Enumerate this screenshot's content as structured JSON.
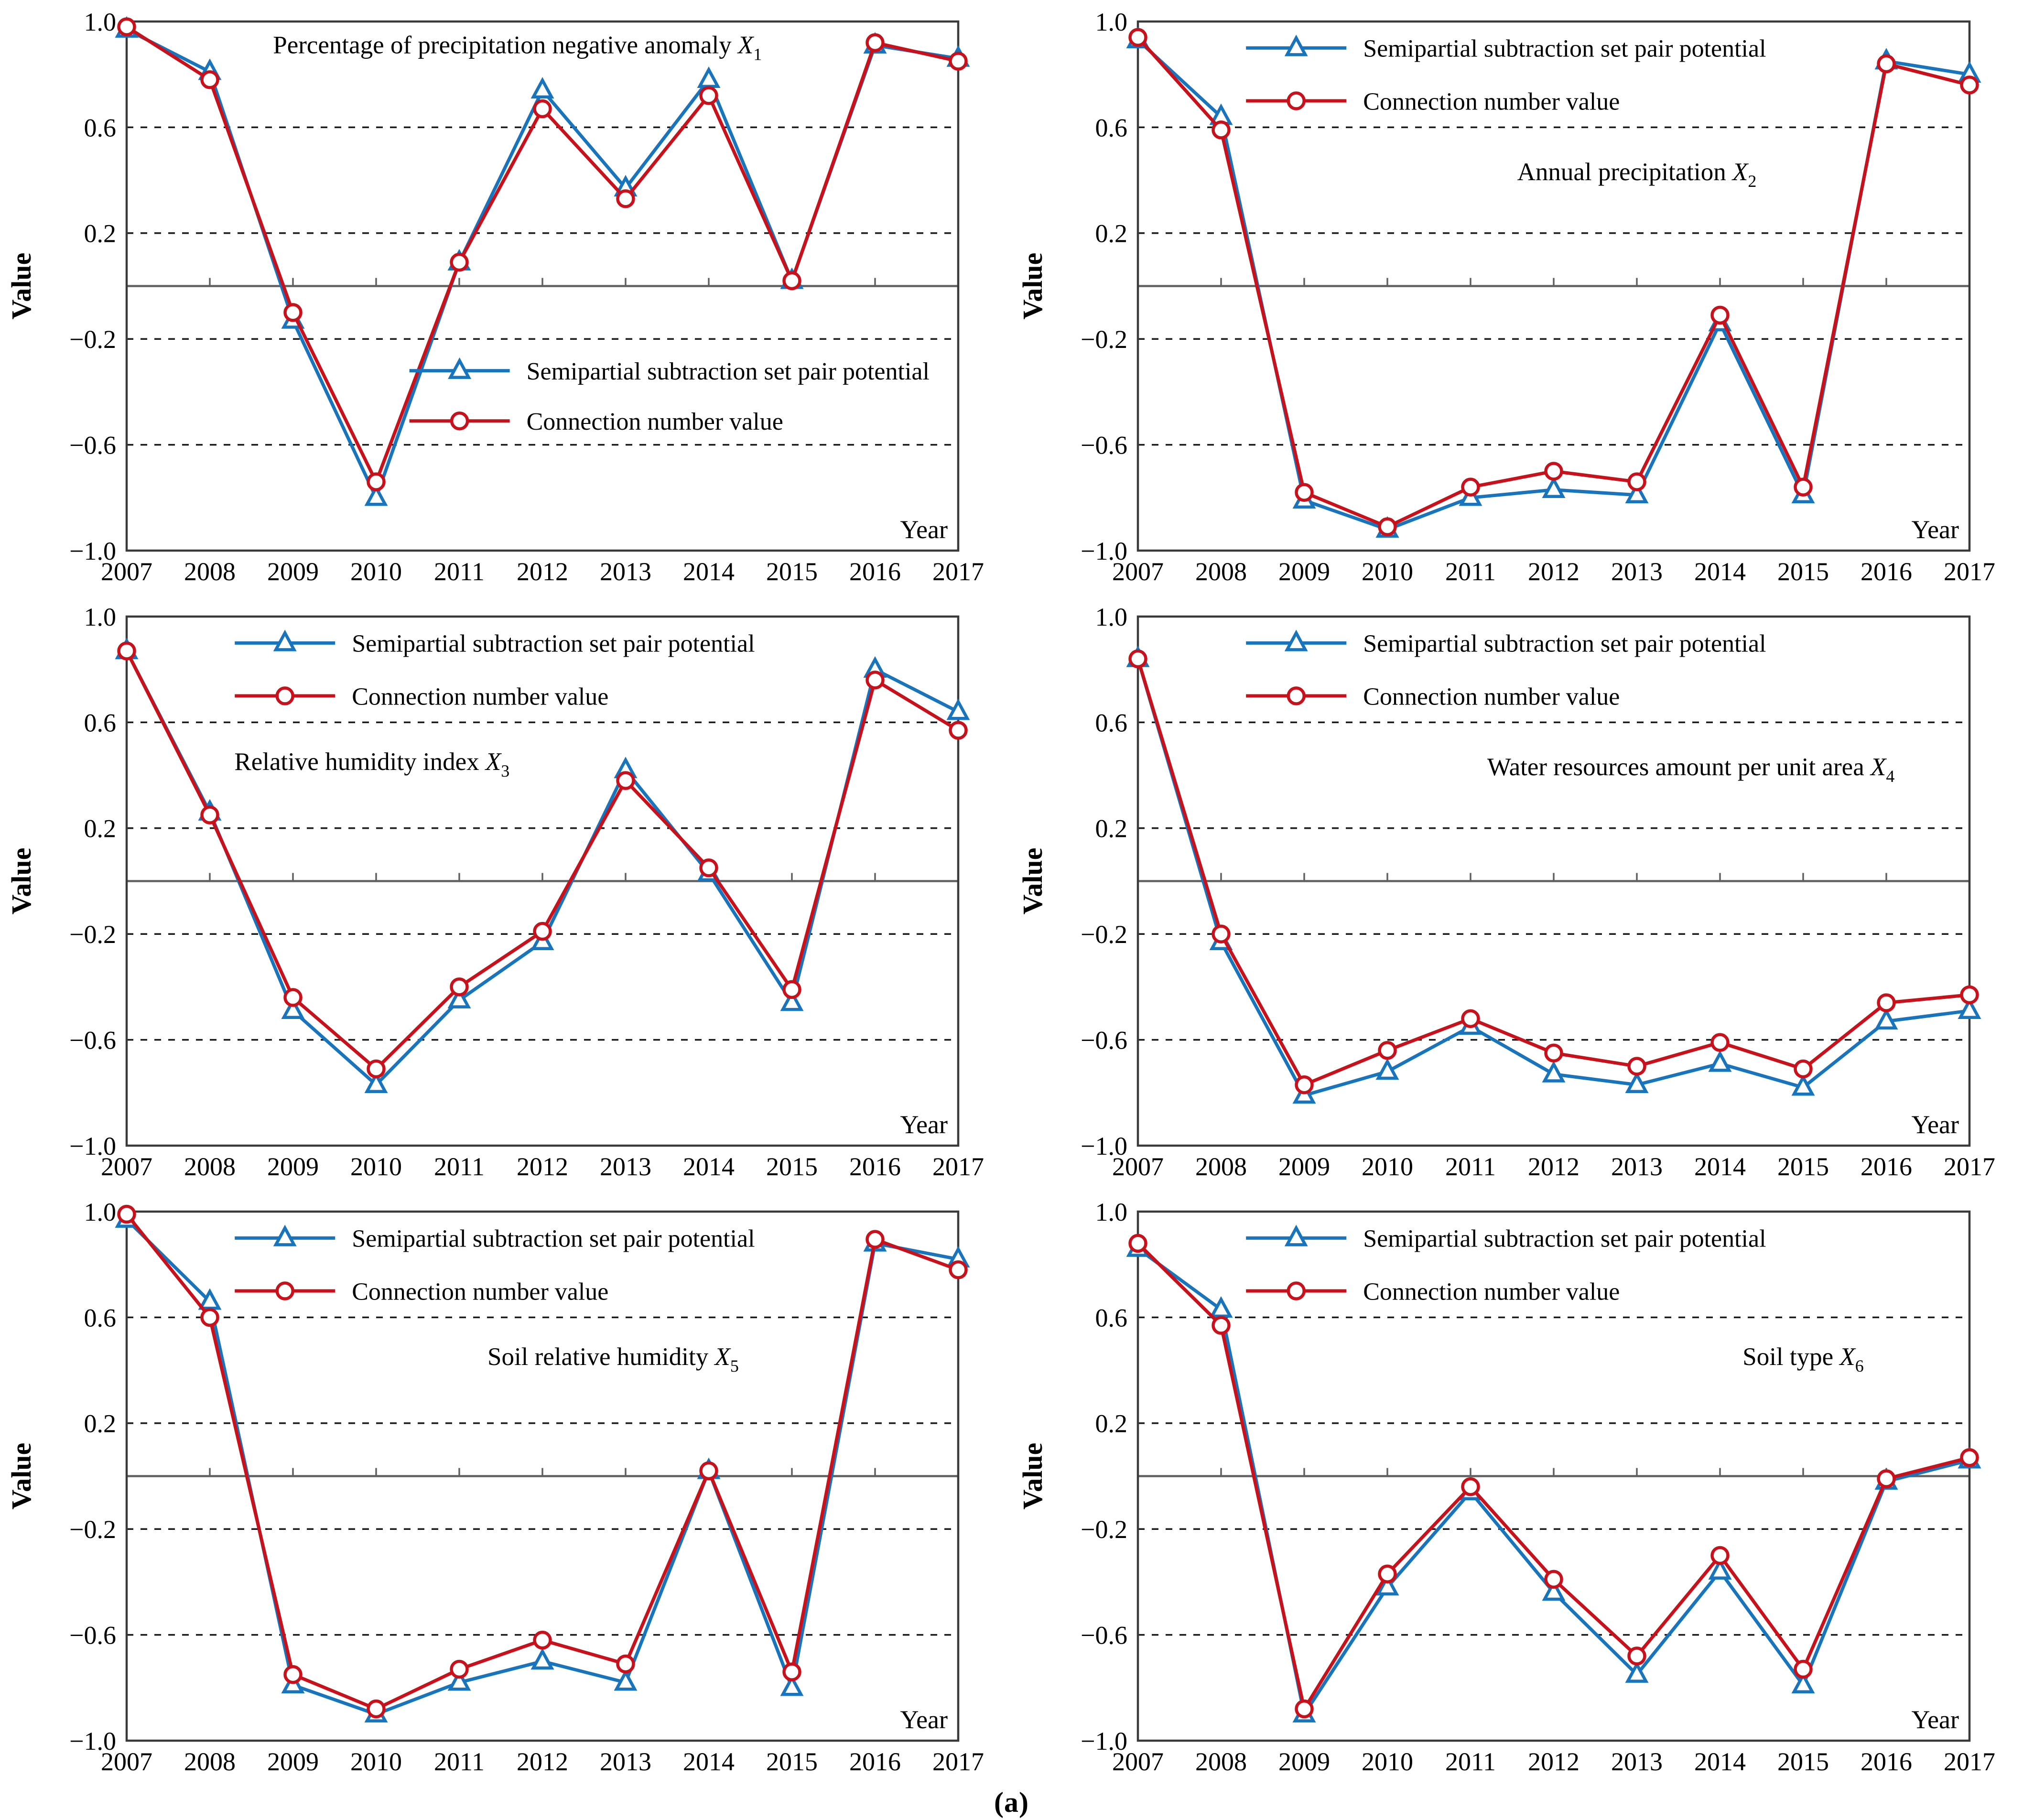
{
  "caption": "(a)",
  "colors": {
    "series_blue": "#1874BC",
    "series_red": "#C8111B",
    "grid": "#1A1A1A",
    "zero_axis": "#616161",
    "frame": "#3A3A3A",
    "text": "#000000",
    "marker_fill": "#FFFFFF",
    "background": "#FFFFFF"
  },
  "legend": {
    "items": [
      {
        "label": "Semipartial subtraction set pair potential",
        "marker": "triangle",
        "color": "series_blue"
      },
      {
        "label": "Connection number value",
        "marker": "circle",
        "color": "series_red"
      }
    ]
  },
  "axis": {
    "ylabel": "Value",
    "xlabel": "Year",
    "ylim": [
      -1.0,
      1.0
    ],
    "ytick_labels": [
      "1.0",
      "0.6",
      "0.2",
      "−0.2",
      "−0.6",
      "−1.0"
    ],
    "ytick_values": [
      1.0,
      0.6,
      0.2,
      -0.2,
      -0.6,
      -1.0
    ],
    "gridline_values": [
      0.6,
      0.2,
      -0.2,
      -0.6
    ],
    "grid_style": "dashed",
    "zero_line": true,
    "years": [
      2007,
      2008,
      2009,
      2010,
      2011,
      2012,
      2013,
      2014,
      2015,
      2016,
      2017
    ]
  },
  "chart_data": [
    {
      "type": "line",
      "title": {
        "text": "Percentage of precipitation negative anomaly ",
        "var": "X",
        "sub": "1"
      },
      "title_pos": {
        "fx": 0.47,
        "value": 0.88
      },
      "legend_pos": {
        "fx": 0.34,
        "row_values": [
          -0.32,
          -0.51
        ]
      },
      "series": [
        {
          "name": "Semipartial subtraction set pair potential",
          "marker": "triangle",
          "color": "series_blue",
          "values": [
            0.97,
            0.81,
            -0.13,
            -0.8,
            0.09,
            0.74,
            0.37,
            0.78,
            0.02,
            0.91,
            0.86
          ]
        },
        {
          "name": "Connection number value",
          "marker": "circle",
          "color": "series_red",
          "values": [
            0.98,
            0.78,
            -0.1,
            -0.74,
            0.09,
            0.67,
            0.33,
            0.72,
            0.02,
            0.92,
            0.85
          ]
        }
      ]
    },
    {
      "type": "line",
      "title": {
        "text": "Annual precipitation ",
        "var": "X",
        "sub": "2"
      },
      "title_pos": {
        "fx": 0.6,
        "value": 0.4
      },
      "legend_pos": {
        "fx": 0.13,
        "row_values": [
          0.9,
          0.7
        ]
      },
      "series": [
        {
          "name": "Semipartial subtraction set pair potential",
          "marker": "triangle",
          "color": "series_blue",
          "values": [
            0.93,
            0.64,
            -0.81,
            -0.92,
            -0.8,
            -0.77,
            -0.79,
            -0.14,
            -0.79,
            0.85,
            0.8
          ]
        },
        {
          "name": "Connection number value",
          "marker": "circle",
          "color": "series_red",
          "values": [
            0.94,
            0.59,
            -0.78,
            -0.91,
            -0.76,
            -0.7,
            -0.74,
            -0.11,
            -0.76,
            0.84,
            0.76
          ]
        }
      ]
    },
    {
      "type": "line",
      "title": {
        "text": "Relative humidity index ",
        "var": "X",
        "sub": "3"
      },
      "title_pos": {
        "fx": 0.295,
        "value": 0.42
      },
      "legend_pos": {
        "fx": 0.13,
        "row_values": [
          0.9,
          0.7
        ]
      },
      "series": [
        {
          "name": "Semipartial subtraction set pair potential",
          "marker": "triangle",
          "color": "series_blue",
          "values": [
            0.87,
            0.26,
            -0.49,
            -0.77,
            -0.45,
            -0.23,
            0.42,
            0.03,
            -0.46,
            0.8,
            0.64
          ]
        },
        {
          "name": "Connection number value",
          "marker": "circle",
          "color": "series_red",
          "values": [
            0.87,
            0.25,
            -0.44,
            -0.71,
            -0.4,
            -0.19,
            0.38,
            0.05,
            -0.41,
            0.76,
            0.57
          ]
        }
      ]
    },
    {
      "type": "line",
      "title": {
        "text": "Water resources amount per unit area ",
        "var": "X",
        "sub": "4"
      },
      "title_pos": {
        "fx": 0.665,
        "value": 0.4
      },
      "legend_pos": {
        "fx": 0.13,
        "row_values": [
          0.9,
          0.7
        ]
      },
      "series": [
        {
          "name": "Semipartial subtraction set pair potential",
          "marker": "triangle",
          "color": "series_blue",
          "values": [
            0.84,
            -0.23,
            -0.81,
            -0.72,
            -0.55,
            -0.73,
            -0.77,
            -0.69,
            -0.78,
            -0.53,
            -0.49
          ]
        },
        {
          "name": "Connection number value",
          "marker": "circle",
          "color": "series_red",
          "values": [
            0.84,
            -0.2,
            -0.77,
            -0.64,
            -0.52,
            -0.65,
            -0.7,
            -0.61,
            -0.71,
            -0.46,
            -0.43
          ]
        }
      ]
    },
    {
      "type": "line",
      "title": {
        "text": "Soil relative humidity ",
        "var": "X",
        "sub": "5"
      },
      "title_pos": {
        "fx": 0.585,
        "value": 0.42
      },
      "legend_pos": {
        "fx": 0.13,
        "row_values": [
          0.9,
          0.7
        ]
      },
      "series": [
        {
          "name": "Semipartial subtraction set pair potential",
          "marker": "triangle",
          "color": "series_blue",
          "values": [
            0.97,
            0.66,
            -0.79,
            -0.9,
            -0.78,
            -0.7,
            -0.78,
            0.02,
            -0.8,
            0.88,
            0.82
          ]
        },
        {
          "name": "Connection number value",
          "marker": "circle",
          "color": "series_red",
          "values": [
            0.99,
            0.6,
            -0.75,
            -0.88,
            -0.73,
            -0.62,
            -0.71,
            0.02,
            -0.74,
            0.895,
            0.78
          ]
        }
      ]
    },
    {
      "type": "line",
      "title": {
        "text": "Soil type ",
        "var": "X",
        "sub": "6"
      },
      "title_pos": {
        "fx": 0.8,
        "value": 0.42
      },
      "legend_pos": {
        "fx": 0.13,
        "row_values": [
          0.9,
          0.7
        ]
      },
      "series": [
        {
          "name": "Semipartial subtraction set pair potential",
          "marker": "triangle",
          "color": "series_blue",
          "values": [
            0.86,
            0.63,
            -0.9,
            -0.42,
            -0.06,
            -0.44,
            -0.75,
            -0.36,
            -0.79,
            -0.02,
            0.06
          ]
        },
        {
          "name": "Connection number value",
          "marker": "circle",
          "color": "series_red",
          "values": [
            0.88,
            0.57,
            -0.88,
            -0.37,
            -0.04,
            -0.39,
            -0.68,
            -0.3,
            -0.73,
            -0.01,
            0.07
          ]
        }
      ]
    }
  ]
}
